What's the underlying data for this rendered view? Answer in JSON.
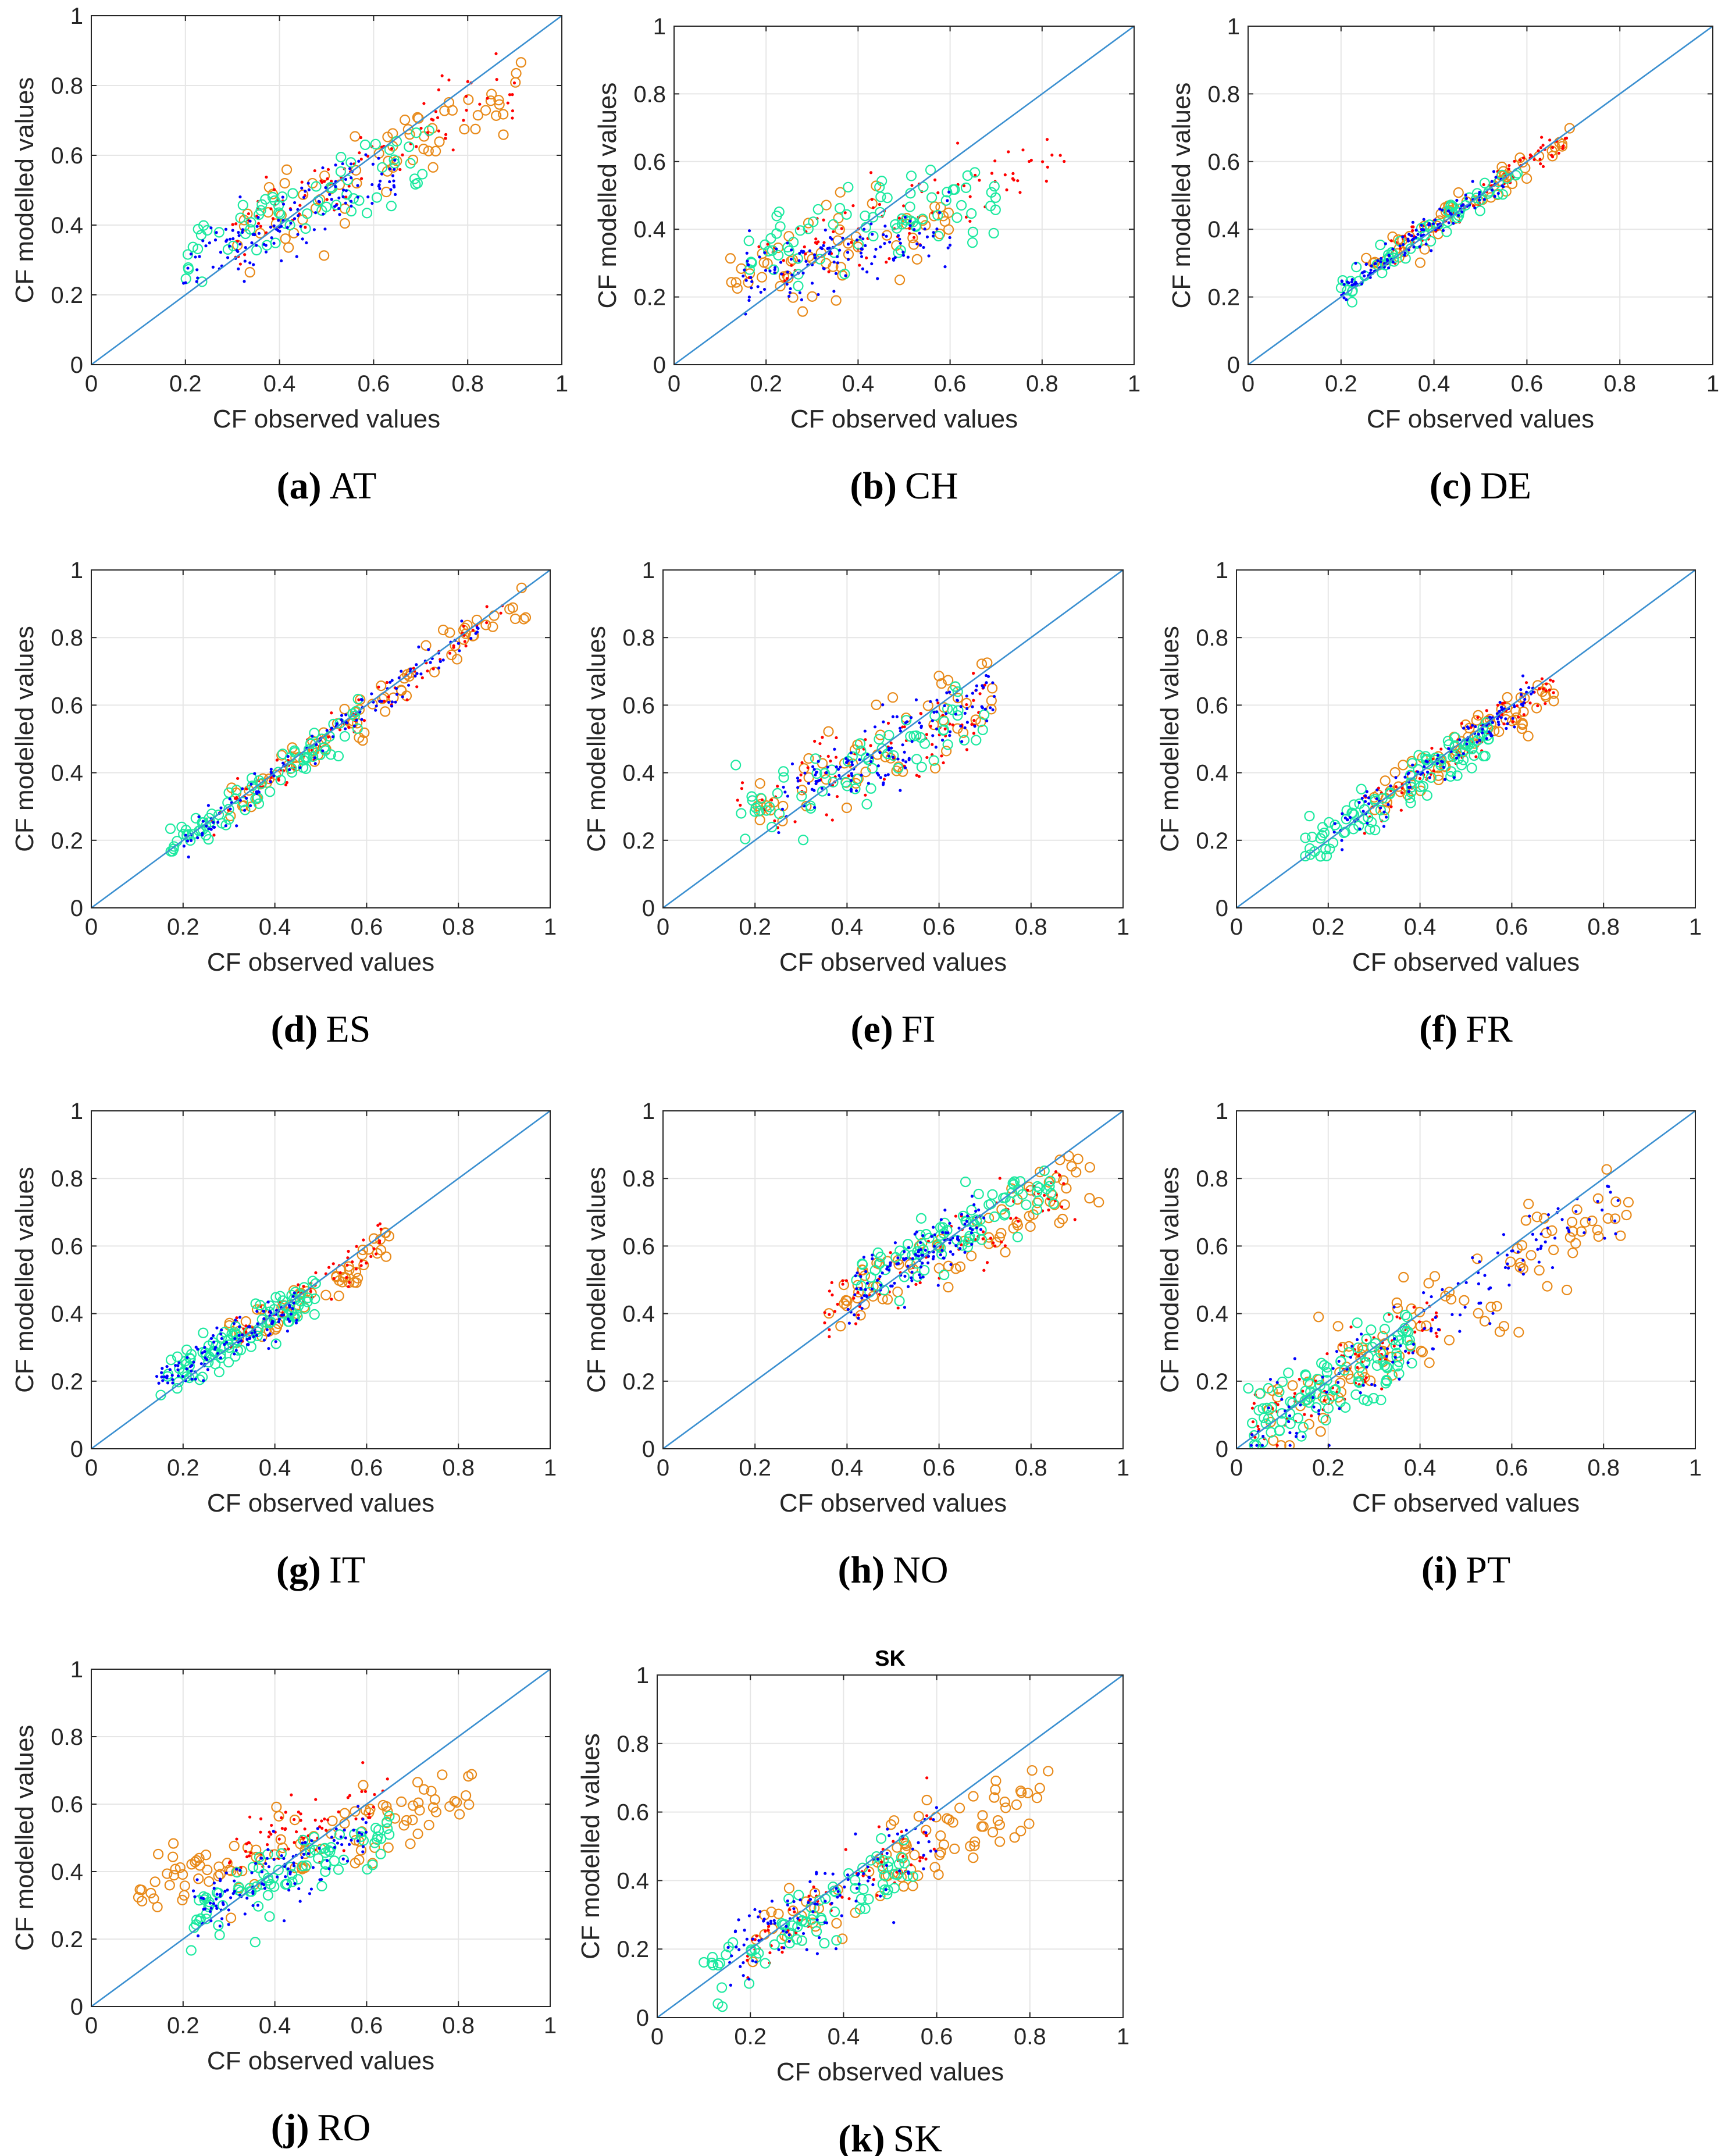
{
  "figure": {
    "xlabel": "CF observed values",
    "ylabel": "CF modelled values",
    "colors": {
      "blue_dots": "#0000ff",
      "red_dots": "#ff0000",
      "orange_circles": "#e88a1a",
      "green_circles": "#1de9a0",
      "diagonal": "#3a8fd0",
      "grid": "#e6e6e6",
      "axis": "#262626"
    }
  },
  "chart_data": [
    {
      "id": "a",
      "type": "scatter",
      "caption_label": "(a)",
      "caption_text": "AT",
      "xlim": [
        0,
        1
      ],
      "ylim": [
        0,
        1
      ],
      "xticks": [
        "0",
        "0.2",
        "0.4",
        "0.6",
        "0.8",
        "1"
      ],
      "yticks": [
        "0",
        "0.2",
        "0.4",
        "0.6",
        "0.8",
        "1"
      ],
      "xlabel": "CF observed values",
      "ylabel": "CF modelled values",
      "reference_line": [
        [
          0,
          0
        ],
        [
          1,
          1
        ]
      ],
      "clusters": [
        {
          "series": "orange_circles",
          "x_range": [
            0.3,
            0.92
          ],
          "y_fn": [
            0.72,
            0.15,
            0.06
          ],
          "count": 70
        },
        {
          "series": "red_dots",
          "x_range": [
            0.3,
            0.9
          ],
          "y_fn": [
            0.78,
            0.12,
            0.05
          ],
          "count": 90
        },
        {
          "series": "green_circles",
          "x_range": [
            0.2,
            0.72
          ],
          "y_fn": [
            0.62,
            0.18,
            0.06
          ],
          "count": 70
        },
        {
          "series": "blue_dots",
          "x_range": [
            0.19,
            0.65
          ],
          "y_fn": [
            0.65,
            0.14,
            0.05
          ],
          "count": 140
        }
      ]
    },
    {
      "id": "b",
      "type": "scatter",
      "caption_label": "(b)",
      "caption_text": "CH",
      "xlim": [
        0,
        1
      ],
      "ylim": [
        0,
        1
      ],
      "xticks": [
        "0",
        "0.2",
        "0.4",
        "0.6",
        "0.8",
        "1"
      ],
      "yticks": [
        "0",
        "0.2",
        "0.4",
        "0.6",
        "0.8",
        "1"
      ],
      "xlabel": "CF observed values",
      "ylabel": "CF modelled values",
      "reference_line": [
        [
          0,
          0
        ],
        [
          1,
          1
        ]
      ],
      "clusters": [
        {
          "series": "orange_circles",
          "x_range": [
            0.1,
            0.6
          ],
          "y_fn": [
            0.4,
            0.2,
            0.06
          ],
          "count": 60
        },
        {
          "series": "red_dots",
          "x_range": [
            0.15,
            0.85
          ],
          "y_fn": [
            0.45,
            0.22,
            0.06
          ],
          "count": 90
        },
        {
          "series": "green_circles",
          "x_range": [
            0.15,
            0.7
          ],
          "y_fn": [
            0.3,
            0.28,
            0.07
          ],
          "count": 80
        },
        {
          "series": "blue_dots",
          "x_range": [
            0.15,
            0.6
          ],
          "y_fn": [
            0.3,
            0.22,
            0.05
          ],
          "count": 130
        }
      ]
    },
    {
      "id": "c",
      "type": "scatter",
      "caption_label": "(c)",
      "caption_text": "DE",
      "xlim": [
        0,
        1
      ],
      "ylim": [
        0,
        1
      ],
      "xticks": [
        "0",
        "0.2",
        "0.4",
        "0.6",
        "0.8",
        "1"
      ],
      "yticks": [
        "0",
        "0.2",
        "0.4",
        "0.6",
        "0.8",
        "1"
      ],
      "xlabel": "CF observed values",
      "ylabel": "CF modelled values",
      "reference_line": [
        [
          0,
          0
        ],
        [
          1,
          1
        ]
      ],
      "clusters": [
        {
          "series": "orange_circles",
          "x_range": [
            0.25,
            0.7
          ],
          "y_fn": [
            0.9,
            0.05,
            0.025
          ],
          "count": 60
        },
        {
          "series": "red_dots",
          "x_range": [
            0.3,
            0.7
          ],
          "y_fn": [
            0.92,
            0.04,
            0.02
          ],
          "count": 80
        },
        {
          "series": "green_circles",
          "x_range": [
            0.2,
            0.58
          ],
          "y_fn": [
            0.9,
            0.05,
            0.025
          ],
          "count": 60
        },
        {
          "series": "blue_dots",
          "x_range": [
            0.2,
            0.55
          ],
          "y_fn": [
            0.92,
            0.04,
            0.02
          ],
          "count": 130
        }
      ]
    },
    {
      "id": "d",
      "type": "scatter",
      "caption_label": "(d)",
      "caption_text": "ES",
      "xlim": [
        0,
        1
      ],
      "ylim": [
        0,
        1
      ],
      "xticks": [
        "0",
        "0.2",
        "0.4",
        "0.6",
        "0.8",
        "1"
      ],
      "yticks": [
        "0",
        "0.2",
        "0.4",
        "0.6",
        "0.8",
        "1"
      ],
      "xlabel": "CF observed values",
      "ylabel": "CF modelled values",
      "reference_line": [
        [
          0,
          0
        ],
        [
          1,
          1
        ]
      ],
      "clusters": [
        {
          "series": "orange_circles",
          "x_range": [
            0.3,
            0.95
          ],
          "y_fn": [
            0.98,
            0.0,
            0.03
          ],
          "count": 80
        },
        {
          "series": "red_dots",
          "x_range": [
            0.25,
            0.9
          ],
          "y_fn": [
            0.98,
            0.0,
            0.025
          ],
          "count": 80
        },
        {
          "series": "green_circles",
          "x_range": [
            0.17,
            0.6
          ],
          "y_fn": [
            0.92,
            0.02,
            0.03
          ],
          "count": 80
        },
        {
          "series": "blue_dots",
          "x_range": [
            0.2,
            0.85
          ],
          "y_fn": [
            0.98,
            0.0,
            0.025
          ],
          "count": 120
        }
      ]
    },
    {
      "id": "e",
      "type": "scatter",
      "caption_label": "(e)",
      "caption_text": "FI",
      "xlim": [
        0,
        1
      ],
      "ylim": [
        0,
        1
      ],
      "xticks": [
        "0",
        "0.2",
        "0.4",
        "0.6",
        "0.8",
        "1"
      ],
      "yticks": [
        "0",
        "0.2",
        "0.4",
        "0.6",
        "0.8",
        "1"
      ],
      "xlabel": "CF observed values",
      "ylabel": "CF modelled values",
      "reference_line": [
        [
          0,
          0
        ],
        [
          1,
          1
        ]
      ],
      "clusters": [
        {
          "series": "orange_circles",
          "x_range": [
            0.2,
            0.72
          ],
          "y_fn": [
            0.62,
            0.18,
            0.06
          ],
          "count": 60
        },
        {
          "series": "red_dots",
          "x_range": [
            0.15,
            0.7
          ],
          "y_fn": [
            0.62,
            0.18,
            0.06
          ],
          "count": 90
        },
        {
          "series": "green_circles",
          "x_range": [
            0.15,
            0.7
          ],
          "y_fn": [
            0.55,
            0.2,
            0.06
          ],
          "count": 70
        },
        {
          "series": "blue_dots",
          "x_range": [
            0.25,
            0.72
          ],
          "y_fn": [
            0.65,
            0.16,
            0.05
          ],
          "count": 140
        }
      ]
    },
    {
      "id": "f",
      "type": "scatter",
      "caption_label": "(f)",
      "caption_text": "FR",
      "xlim": [
        0,
        1
      ],
      "ylim": [
        0,
        1
      ],
      "xticks": [
        "0",
        "0.2",
        "0.4",
        "0.6",
        "0.8",
        "1"
      ],
      "yticks": [
        "0",
        "0.2",
        "0.4",
        "0.6",
        "0.8",
        "1"
      ],
      "xlabel": "CF observed values",
      "ylabel": "CF modelled values",
      "reference_line": [
        [
          0,
          0
        ],
        [
          1,
          1
        ]
      ],
      "clusters": [
        {
          "series": "orange_circles",
          "x_range": [
            0.3,
            0.7
          ],
          "y_fn": [
            0.92,
            0.02,
            0.035
          ],
          "count": 70
        },
        {
          "series": "red_dots",
          "x_range": [
            0.25,
            0.7
          ],
          "y_fn": [
            0.94,
            0.02,
            0.03
          ],
          "count": 80
        },
        {
          "series": "green_circles",
          "x_range": [
            0.15,
            0.55
          ],
          "y_fn": [
            0.88,
            0.04,
            0.03
          ],
          "count": 100
        },
        {
          "series": "blue_dots",
          "x_range": [
            0.2,
            0.65
          ],
          "y_fn": [
            0.92,
            0.03,
            0.03
          ],
          "count": 120
        }
      ]
    },
    {
      "id": "g",
      "type": "scatter",
      "caption_label": "(g)",
      "caption_text": "IT",
      "xlim": [
        0,
        1
      ],
      "ylim": [
        0,
        1
      ],
      "xticks": [
        "0",
        "0.2",
        "0.4",
        "0.6",
        "0.8",
        "1"
      ],
      "yticks": [
        "0",
        "0.2",
        "0.4",
        "0.6",
        "0.8",
        "1"
      ],
      "xlabel": "CF observed values",
      "ylabel": "CF modelled values",
      "reference_line": [
        [
          0,
          0
        ],
        [
          1,
          1
        ]
      ],
      "clusters": [
        {
          "series": "orange_circles",
          "x_range": [
            0.3,
            0.65
          ],
          "y_fn": [
            0.85,
            0.06,
            0.03
          ],
          "count": 60
        },
        {
          "series": "red_dots",
          "x_range": [
            0.3,
            0.65
          ],
          "y_fn": [
            0.88,
            0.05,
            0.025
          ],
          "count": 70
        },
        {
          "series": "green_circles",
          "x_range": [
            0.15,
            0.5
          ],
          "y_fn": [
            0.8,
            0.07,
            0.03
          ],
          "count": 100
        },
        {
          "series": "blue_dots",
          "x_range": [
            0.14,
            0.45
          ],
          "y_fn": [
            0.7,
            0.1,
            0.03
          ],
          "count": 120
        }
      ]
    },
    {
      "id": "h",
      "type": "scatter",
      "caption_label": "(h)",
      "caption_text": "NO",
      "xlim": [
        0,
        1
      ],
      "ylim": [
        0,
        1
      ],
      "xticks": [
        "0",
        "0.2",
        "0.4",
        "0.6",
        "0.8",
        "1"
      ],
      "yticks": [
        "0",
        "0.2",
        "0.4",
        "0.6",
        "0.8",
        "1"
      ],
      "xlabel": "CF observed values",
      "ylabel": "CF modelled values",
      "reference_line": [
        [
          0,
          0
        ],
        [
          1,
          1
        ]
      ],
      "clusters": [
        {
          "series": "orange_circles",
          "x_range": [
            0.35,
            0.96
          ],
          "y_fn": [
            0.7,
            0.16,
            0.05
          ],
          "count": 80
        },
        {
          "series": "red_dots",
          "x_range": [
            0.35,
            0.9
          ],
          "y_fn": [
            0.7,
            0.16,
            0.05
          ],
          "count": 80
        },
        {
          "series": "green_circles",
          "x_range": [
            0.42,
            0.85
          ],
          "y_fn": [
            0.72,
            0.18,
            0.05
          ],
          "count": 90
        },
        {
          "series": "blue_dots",
          "x_range": [
            0.4,
            0.7
          ],
          "y_fn": [
            0.72,
            0.17,
            0.04
          ],
          "count": 130
        }
      ]
    },
    {
      "id": "i",
      "type": "scatter",
      "caption_label": "(i)",
      "caption_text": "PT",
      "xlim": [
        0,
        1
      ],
      "ylim": [
        0,
        1
      ],
      "xticks": [
        "0",
        "0.2",
        "0.4",
        "0.6",
        "0.8",
        "1"
      ],
      "yticks": [
        "0",
        "0.2",
        "0.4",
        "0.6",
        "0.8",
        "1"
      ],
      "xlabel": "CF observed values",
      "ylabel": "CF modelled values",
      "reference_line": [
        [
          0,
          0
        ],
        [
          1,
          1
        ]
      ],
      "clusters": [
        {
          "series": "orange_circles",
          "x_range": [
            0.05,
            0.86
          ],
          "y_fn": [
            0.85,
            0.02,
            0.08
          ],
          "count": 110
        },
        {
          "series": "red_dots",
          "x_range": [
            0.03,
            0.45
          ],
          "y_fn": [
            0.85,
            0.02,
            0.05
          ],
          "count": 90
        },
        {
          "series": "green_circles",
          "x_range": [
            0.02,
            0.4
          ],
          "y_fn": [
            0.8,
            0.02,
            0.05
          ],
          "count": 110
        },
        {
          "series": "blue_dots",
          "x_range": [
            0.03,
            0.85
          ],
          "y_fn": [
            0.88,
            0.01,
            0.06
          ],
          "count": 130
        }
      ]
    },
    {
      "id": "j",
      "type": "scatter",
      "caption_label": "(j)",
      "caption_text": "RO",
      "xlim": [
        0,
        1
      ],
      "ylim": [
        0,
        1
      ],
      "xticks": [
        "0",
        "0.2",
        "0.4",
        "0.6",
        "0.8",
        "1"
      ],
      "yticks": [
        "0",
        "0.2",
        "0.4",
        "0.6",
        "0.8",
        "1"
      ],
      "xlabel": "CF observed values",
      "ylabel": "CF modelled values",
      "reference_line": [
        [
          0,
          0
        ],
        [
          1,
          1
        ]
      ],
      "clusters": [
        {
          "series": "orange_circles",
          "x_range": [
            0.1,
            0.85
          ],
          "y_fn": [
            0.4,
            0.3,
            0.05
          ],
          "count": 110
        },
        {
          "series": "red_dots",
          "x_range": [
            0.3,
            0.65
          ],
          "y_fn": [
            0.5,
            0.3,
            0.05
          ],
          "count": 70
        },
        {
          "series": "green_circles",
          "x_range": [
            0.2,
            0.65
          ],
          "y_fn": [
            0.55,
            0.15,
            0.05
          ],
          "count": 90
        },
        {
          "series": "blue_dots",
          "x_range": [
            0.22,
            0.6
          ],
          "y_fn": [
            0.55,
            0.17,
            0.05
          ],
          "count": 120
        }
      ]
    },
    {
      "id": "k",
      "type": "scatter",
      "title": "SK",
      "caption_label": "(k)",
      "caption_text": "SK",
      "xlim": [
        0,
        1
      ],
      "ylim": [
        0,
        1
      ],
      "xticks": [
        "0",
        "0.2",
        "0.4",
        "0.6",
        "0.8",
        "1"
      ],
      "yticks": [
        "0",
        "0.2",
        "0.4",
        "0.6",
        "0.8",
        "1"
      ],
      "xlabel": "CF observed values",
      "ylabel": "CF modelled values",
      "reference_line": [
        [
          0,
          0
        ],
        [
          1,
          1
        ]
      ],
      "clusters": [
        {
          "series": "orange_circles",
          "x_range": [
            0.2,
            0.85
          ],
          "y_fn": [
            0.72,
            0.08,
            0.06
          ],
          "count": 90
        },
        {
          "series": "red_dots",
          "x_range": [
            0.18,
            0.6
          ],
          "y_fn": [
            0.8,
            0.05,
            0.05
          ],
          "count": 70
        },
        {
          "series": "green_circles",
          "x_range": [
            0.1,
            0.55
          ],
          "y_fn": [
            0.78,
            0.04,
            0.05
          ],
          "count": 80
        },
        {
          "series": "blue_dots",
          "x_range": [
            0.15,
            0.6
          ],
          "y_fn": [
            0.8,
            0.05,
            0.05
          ],
          "count": 120
        }
      ]
    }
  ]
}
